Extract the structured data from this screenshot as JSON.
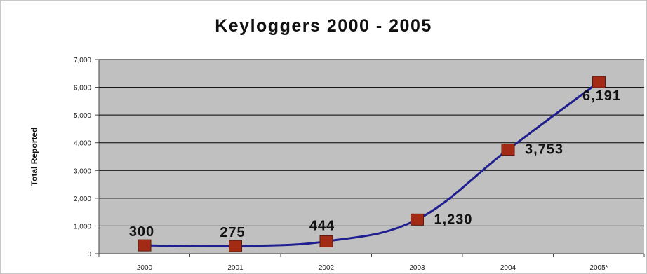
{
  "chart_data": {
    "type": "line",
    "title": "Keyloggers 2000 - 2005",
    "ylabel": "Total Reported",
    "xlabel": "",
    "categories": [
      "2000",
      "2001",
      "2002",
      "2003",
      "2004",
      "2005*"
    ],
    "series": [
      {
        "values": [
          300,
          275,
          444,
          1230,
          3753,
          6191
        ]
      }
    ],
    "data_labels": [
      "300",
      "275",
      "444",
      "1,230",
      "3,753",
      "6,191"
    ],
    "ylim": [
      0,
      7000
    ],
    "yticks": [
      0,
      1000,
      2000,
      3000,
      4000,
      5000,
      6000,
      7000
    ],
    "ytick_labels": [
      "0",
      "1,000",
      "2,000",
      "3,000",
      "4,000",
      "5,000",
      "6,000",
      "7,000"
    ],
    "grid": true,
    "colors": {
      "plot_background": "#c0c0c0",
      "gridline": "#000000",
      "line": "#1f1f8f",
      "marker_fill": "#a32a14",
      "marker_edge": "#5a1a0c"
    }
  }
}
